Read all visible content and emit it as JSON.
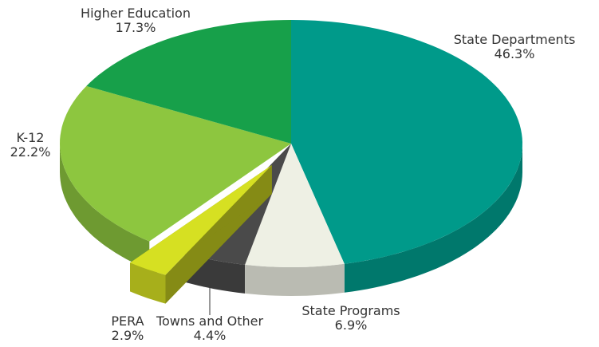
{
  "chart_data": {
    "type": "pie3d",
    "categories": [
      "State Departments",
      "State Programs",
      "Towns and Other",
      "PERA",
      "K-12",
      "Higher Education"
    ],
    "values": [
      46.3,
      6.9,
      4.4,
      2.9,
      22.2,
      17.3
    ],
    "value_labels": [
      "46.3%",
      "6.9%",
      "4.4%",
      "2.9%",
      "22.2%",
      "17.3%"
    ],
    "colors": [
      "#009a8a",
      "#eef0e4",
      "#4a4a4a",
      "#d6e022",
      "#8dc63f",
      "#17a04a"
    ],
    "explode": [
      false,
      false,
      false,
      true,
      false,
      false
    ]
  }
}
